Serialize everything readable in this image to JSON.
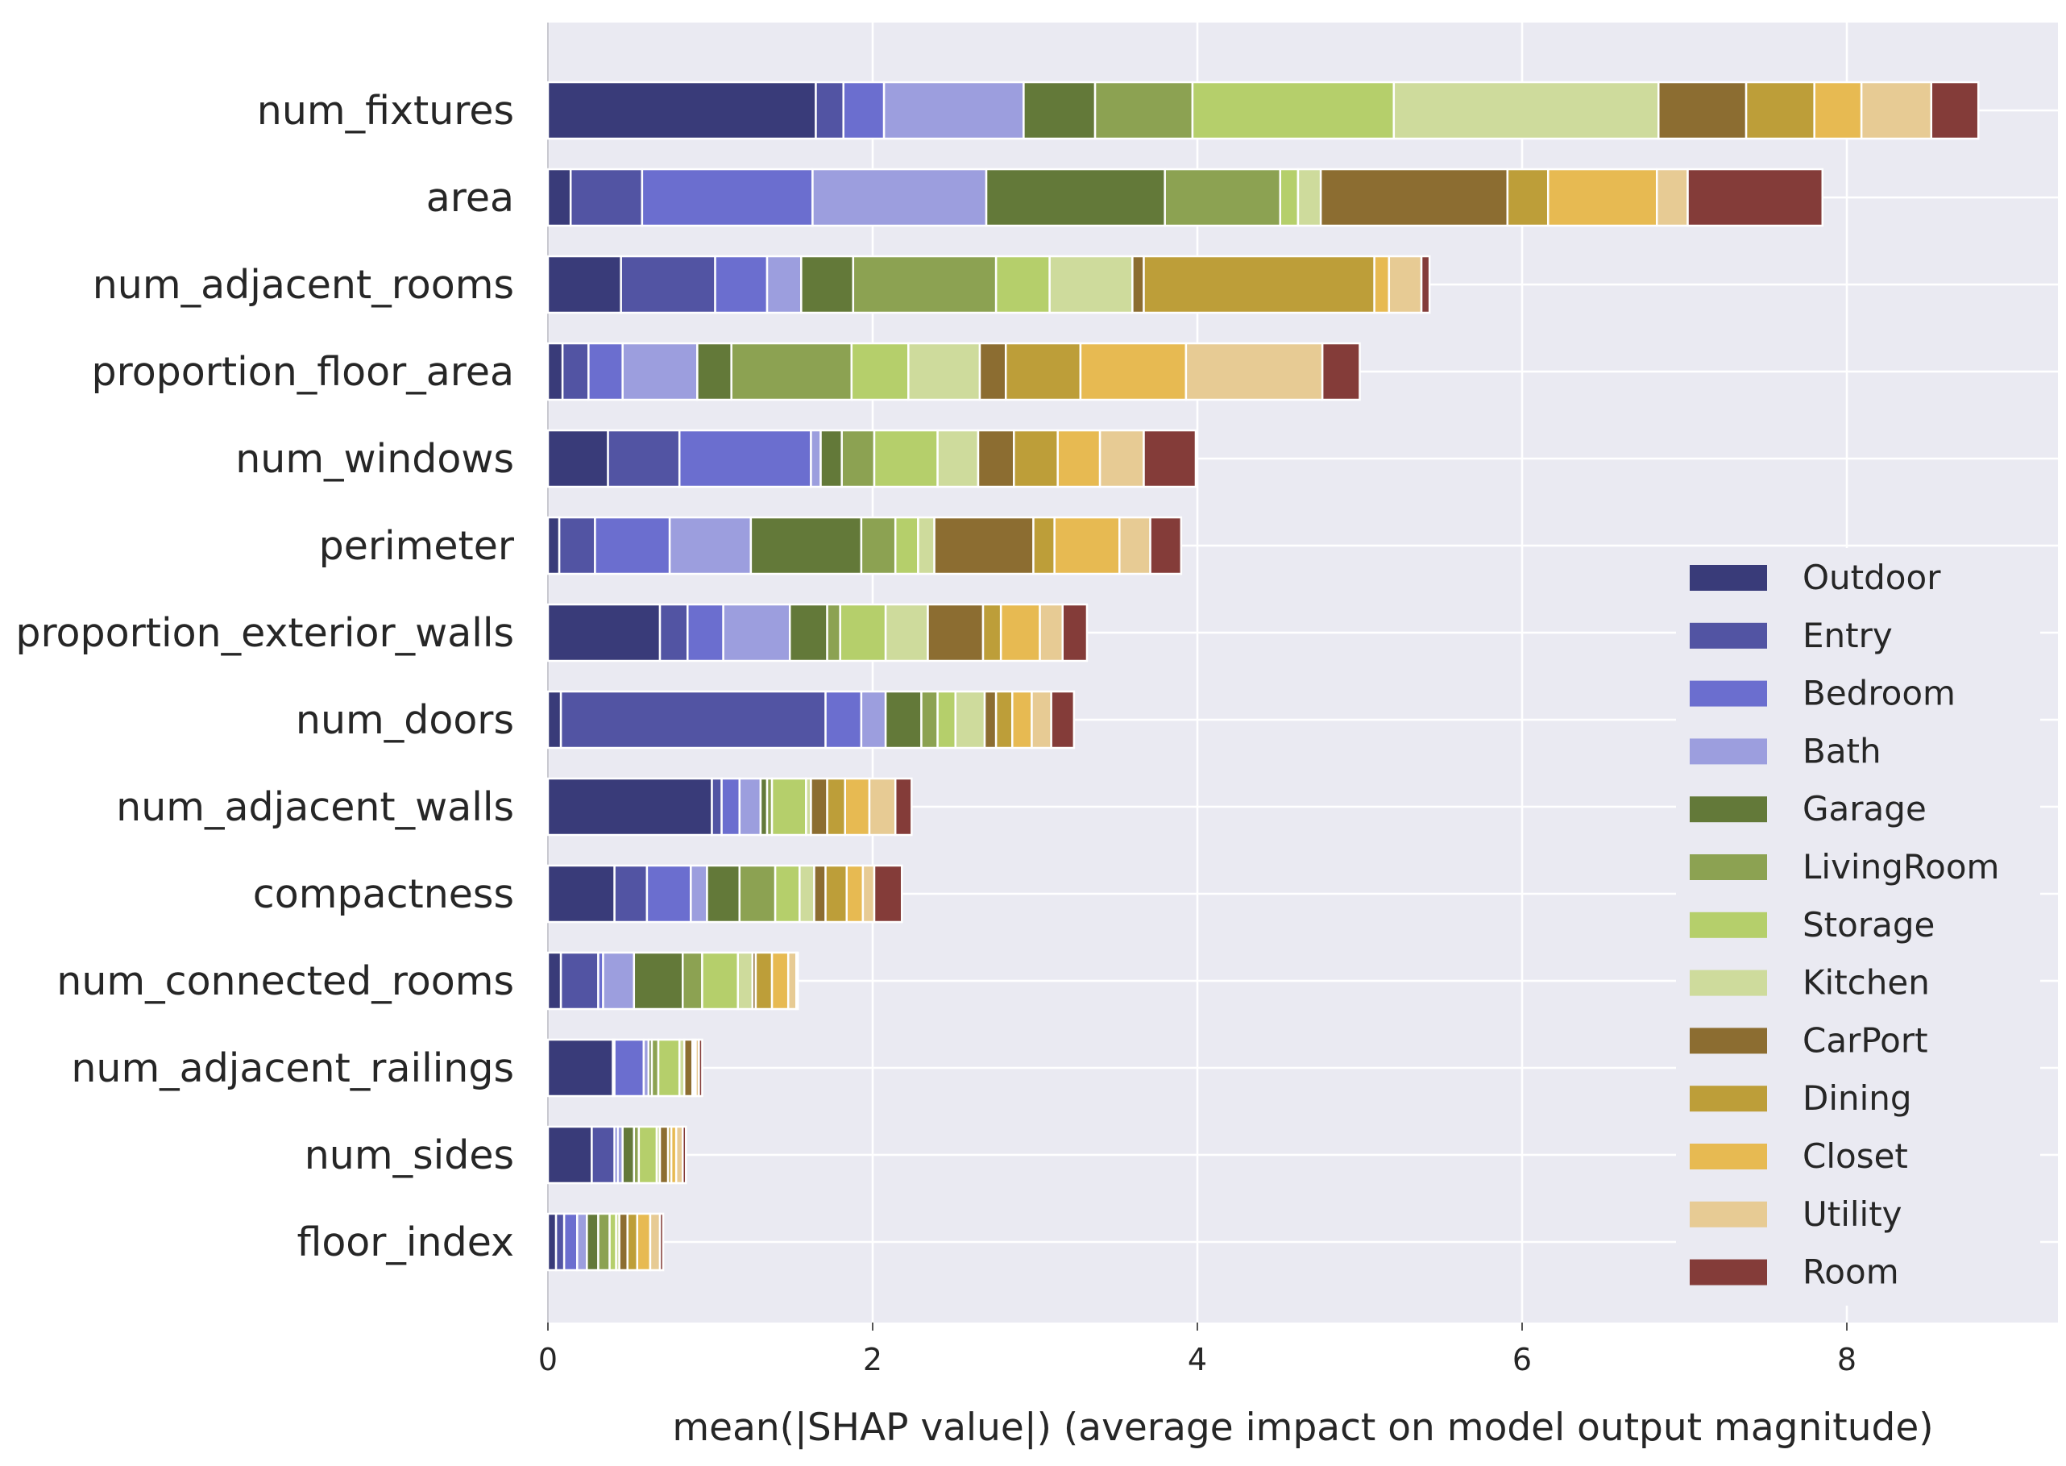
{
  "chart_data": {
    "type": "bar",
    "orientation": "horizontal",
    "stacked": true,
    "title": "",
    "xlabel": "mean(|SHAP value|) (average impact on model output magnitude)",
    "ylabel": "",
    "xlim": [
      0,
      9.3
    ],
    "xticks": [
      0,
      2,
      4,
      6,
      8
    ],
    "grid": true,
    "legend_position": "right",
    "categories": [
      "num_fixtures",
      "area",
      "num_adjacent_rooms",
      "proportion_floor_area",
      "num_windows",
      "perimeter",
      "proportion_exterior_walls",
      "num_doors",
      "num_adjacent_walls",
      "compactness",
      "num_connected_rooms",
      "num_adjacent_railings",
      "num_sides",
      "floor_index"
    ],
    "series": [
      {
        "name": "Outdoor",
        "color": "#393b79",
        "values": [
          1.65,
          0.14,
          0.45,
          0.09,
          0.37,
          0.07,
          0.69,
          0.08,
          1.01,
          0.41,
          0.08,
          0.4,
          0.27,
          0.05
        ]
      },
      {
        "name": "Entry",
        "color": "#5254a3",
        "values": [
          0.17,
          0.44,
          0.58,
          0.16,
          0.44,
          0.22,
          0.17,
          1.63,
          0.06,
          0.2,
          0.23,
          0.01,
          0.14,
          0.05
        ]
      },
      {
        "name": "Bedroom",
        "color": "#6b6ecf",
        "values": [
          0.25,
          1.05,
          0.32,
          0.21,
          0.81,
          0.46,
          0.22,
          0.22,
          0.11,
          0.27,
          0.03,
          0.18,
          0.02,
          0.08
        ]
      },
      {
        "name": "Bath",
        "color": "#9c9ede",
        "values": [
          0.86,
          1.07,
          0.21,
          0.46,
          0.06,
          0.5,
          0.41,
          0.15,
          0.13,
          0.1,
          0.19,
          0.03,
          0.03,
          0.06
        ]
      },
      {
        "name": "Garage",
        "color": "#637939",
        "values": [
          0.44,
          1.1,
          0.32,
          0.21,
          0.13,
          0.68,
          0.23,
          0.22,
          0.04,
          0.2,
          0.3,
          0.02,
          0.07,
          0.07
        ]
      },
      {
        "name": "LivingRoom",
        "color": "#8ca252",
        "values": [
          0.6,
          0.71,
          0.88,
          0.74,
          0.2,
          0.21,
          0.08,
          0.1,
          0.03,
          0.22,
          0.12,
          0.04,
          0.03,
          0.07
        ]
      },
      {
        "name": "Storage",
        "color": "#b5cf6b",
        "values": [
          1.24,
          0.11,
          0.33,
          0.35,
          0.39,
          0.14,
          0.28,
          0.11,
          0.21,
          0.15,
          0.22,
          0.13,
          0.11,
          0.04
        ]
      },
      {
        "name": "Kitchen",
        "color": "#cedb9c",
        "values": [
          1.63,
          0.14,
          0.51,
          0.44,
          0.25,
          0.1,
          0.26,
          0.18,
          0.03,
          0.09,
          0.09,
          0.03,
          0.02,
          0.02
        ]
      },
      {
        "name": "CarPort",
        "color": "#8c6d31",
        "values": [
          0.54,
          1.15,
          0.07,
          0.16,
          0.22,
          0.61,
          0.34,
          0.07,
          0.1,
          0.07,
          0.02,
          0.05,
          0.05,
          0.05
        ]
      },
      {
        "name": "Dining",
        "color": "#bd9e39",
        "values": [
          0.42,
          0.25,
          1.42,
          0.46,
          0.27,
          0.13,
          0.11,
          0.1,
          0.11,
          0.13,
          0.1,
          0.01,
          0.02,
          0.06
        ]
      },
      {
        "name": "Closet",
        "color": "#e7ba52",
        "values": [
          0.29,
          0.67,
          0.09,
          0.65,
          0.26,
          0.4,
          0.24,
          0.12,
          0.15,
          0.1,
          0.1,
          0.01,
          0.03,
          0.08
        ]
      },
      {
        "name": "Utility",
        "color": "#e7cb94",
        "values": [
          0.43,
          0.19,
          0.2,
          0.84,
          0.27,
          0.19,
          0.14,
          0.12,
          0.16,
          0.07,
          0.05,
          0.02,
          0.04,
          0.06
        ]
      },
      {
        "name": "Room",
        "color": "#843c39",
        "values": [
          0.29,
          0.83,
          0.05,
          0.23,
          0.32,
          0.19,
          0.15,
          0.14,
          0.1,
          0.17,
          0.01,
          0.02,
          0.02,
          0.02
        ]
      }
    ]
  }
}
